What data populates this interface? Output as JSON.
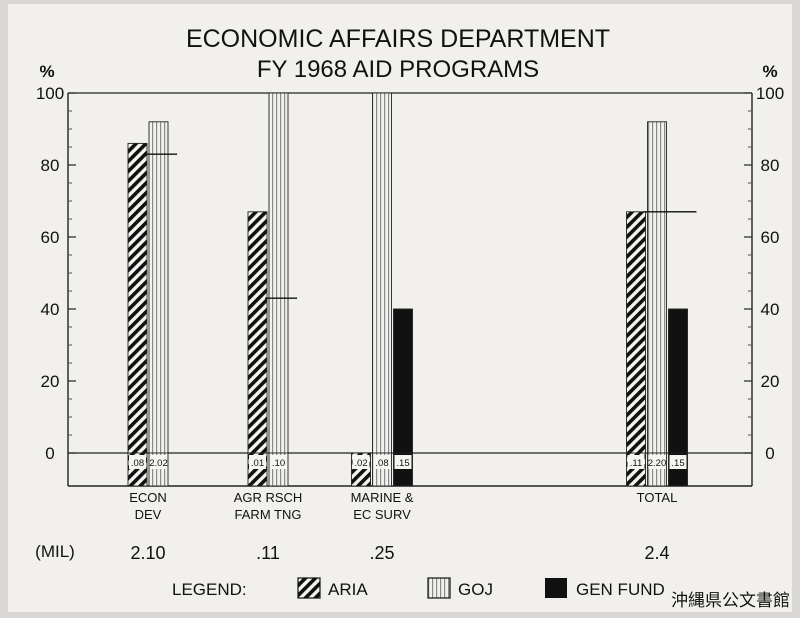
{
  "chart_data": {
    "type": "bar",
    "title_lines": [
      "ECONOMIC AFFAIRS DEPARTMENT",
      "FY 1968 AID PROGRAMS"
    ],
    "y_unit_left": "%",
    "y_unit_right": "%",
    "ylim": [
      0,
      100
    ],
    "yticks": [
      0,
      20,
      40,
      60,
      80,
      100
    ],
    "ytick_labels": [
      "0",
      "20",
      "40",
      "60",
      "80",
      "100"
    ],
    "grid": false,
    "categories": [
      {
        "label_lines": [
          "ECON",
          "DEV"
        ],
        "total_mil": "2.10"
      },
      {
        "label_lines": [
          "AGR RSCH",
          "FARM TNG"
        ],
        "total_mil": ".11"
      },
      {
        "label_lines": [
          "MARINE &",
          "EC SURV"
        ],
        "total_mil": ".25"
      },
      {
        "label_lines": [
          "TOTAL"
        ],
        "total_mil": "2.4"
      }
    ],
    "mil_row_label": "(MIL)",
    "series": [
      {
        "name": "ARIA",
        "color": "#111111",
        "pattern": "diagonal-hatch",
        "values": [
          86,
          67,
          null,
          67
        ],
        "amount_labels": [
          ".08",
          ".01",
          ".02",
          ".11"
        ]
      },
      {
        "name": "GOJ",
        "color": "#8a8a8a",
        "pattern": "vertical-lines",
        "values": [
          92,
          100,
          100,
          92
        ],
        "amount_labels": [
          "2.02",
          ".10",
          ".08",
          "2.20"
        ]
      },
      {
        "name": "GEN FUND",
        "color": "#111111",
        "pattern": "solid",
        "values": [
          null,
          null,
          40,
          40
        ],
        "amount_labels": [
          null,
          null,
          ".15",
          ".15"
        ]
      }
    ],
    "inner_marks": [
      {
        "category": 0,
        "value": 83
      },
      {
        "category": 1,
        "value": 43
      },
      {
        "category": 3,
        "value": 67
      }
    ],
    "legend_title": "LEGEND:",
    "legend_position": "bottom",
    "watermark": "沖縄県公文書館"
  }
}
